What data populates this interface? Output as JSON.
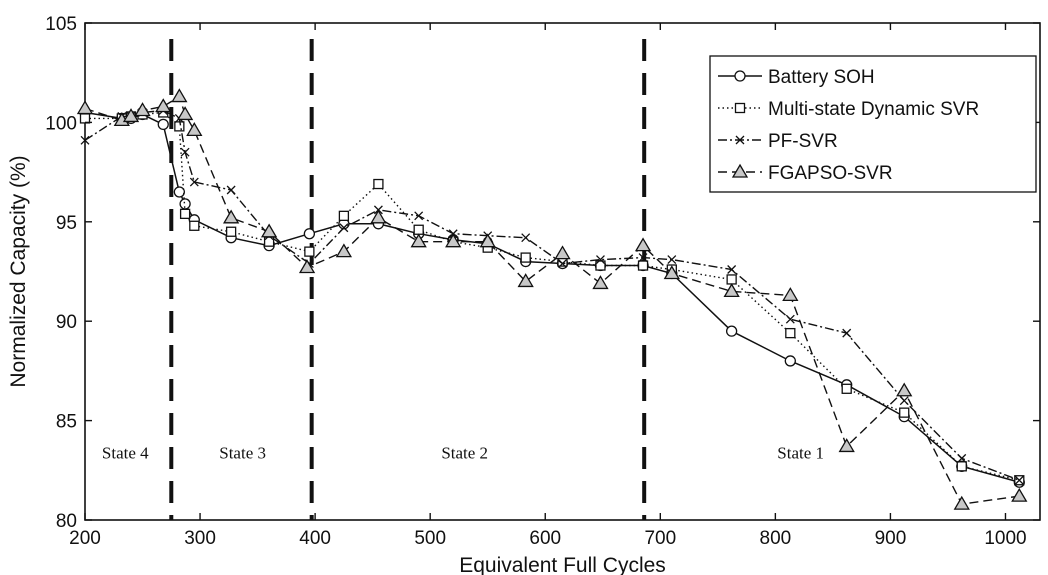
{
  "chart_data": {
    "type": "line",
    "xlabel": "Equivalent Full Cycles",
    "ylabel": "Normalized Capacity (%)",
    "xlim": [
      200,
      1030
    ],
    "ylim": [
      80,
      105
    ],
    "xticks": [
      200,
      300,
      400,
      500,
      600,
      700,
      800,
      900,
      1000
    ],
    "yticks": [
      80,
      85,
      90,
      95,
      100,
      105
    ],
    "grid": false,
    "legend_position": "top-right",
    "series": [
      {
        "name": "Battery SOH",
        "marker": "circle",
        "dash": "solid",
        "x": [
          200,
          232,
          240,
          250,
          268,
          282,
          287,
          295,
          327,
          360,
          395,
          425,
          455,
          490,
          520,
          550,
          583,
          615,
          648,
          685,
          710,
          762,
          813,
          862,
          912,
          962,
          1012
        ],
        "y": [
          100.5,
          100.2,
          100.2,
          100.4,
          99.9,
          96.5,
          95.9,
          95.1,
          94.2,
          93.8,
          94.4,
          94.9,
          94.9,
          94.4,
          94.1,
          93.9,
          93.0,
          92.9,
          92.8,
          92.8,
          92.4,
          89.5,
          88.0,
          86.8,
          85.2,
          82.7,
          81.9
        ]
      },
      {
        "name": "Multi-state Dynamic SVR",
        "marker": "square",
        "dash": "dotted",
        "x": [
          200,
          232,
          240,
          250,
          268,
          282,
          287,
          295,
          327,
          360,
          395,
          425,
          455,
          490,
          520,
          550,
          583,
          615,
          648,
          685,
          710,
          762,
          813,
          862,
          912,
          962,
          1012
        ],
        "y": [
          100.2,
          100.2,
          100.3,
          100.4,
          100.5,
          99.8,
          95.4,
          94.8,
          94.5,
          94.0,
          93.5,
          95.3,
          96.9,
          94.6,
          94.0,
          93.7,
          93.2,
          93.0,
          92.8,
          92.8,
          92.6,
          92.1,
          89.4,
          86.6,
          85.4,
          82.7,
          82.0
        ]
      },
      {
        "name": "PF-SVR",
        "marker": "x",
        "dash": "dashdot",
        "x": [
          200,
          232,
          240,
          250,
          268,
          282,
          287,
          295,
          327,
          360,
          395,
          425,
          455,
          490,
          520,
          550,
          583,
          615,
          648,
          685,
          710,
          762,
          813,
          862,
          912,
          962,
          1012
        ],
        "y": [
          99.1,
          100.3,
          100.3,
          100.5,
          100.6,
          100.2,
          98.5,
          97.0,
          96.6,
          94.3,
          92.9,
          94.7,
          95.6,
          95.3,
          94.4,
          94.3,
          94.2,
          92.9,
          93.1,
          93.2,
          93.1,
          92.6,
          90.1,
          89.4,
          86.0,
          83.1,
          82.0
        ]
      },
      {
        "name": "FGAPSO-SVR",
        "marker": "triangle",
        "dash": "dashed",
        "x": [
          200,
          232,
          240,
          250,
          268,
          282,
          287,
          295,
          327,
          360,
          393,
          425,
          455,
          490,
          520,
          550,
          583,
          615,
          648,
          685,
          710,
          762,
          813,
          862,
          912,
          962,
          1012
        ],
        "y": [
          100.7,
          100.1,
          100.3,
          100.6,
          100.8,
          101.3,
          100.4,
          99.6,
          95.2,
          94.5,
          92.7,
          93.5,
          95.2,
          94.0,
          94.0,
          94.0,
          92.0,
          93.4,
          91.9,
          93.8,
          92.4,
          91.5,
          91.3,
          83.7,
          86.5,
          80.8,
          81.2
        ]
      }
    ],
    "state_boundaries": [
      275,
      397,
      686
    ],
    "state_labels": [
      {
        "text": "State 4",
        "x": 235,
        "y": 83.1
      },
      {
        "text": "State 3",
        "x": 337,
        "y": 83.1
      },
      {
        "text": "State 2",
        "x": 530,
        "y": 83.1
      },
      {
        "text": "State 1",
        "x": 822,
        "y": 83.1
      }
    ]
  }
}
